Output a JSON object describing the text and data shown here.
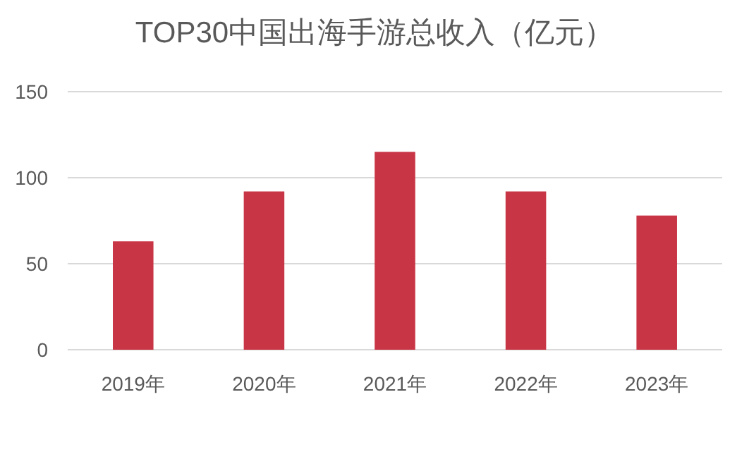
{
  "chart_data": {
    "type": "bar",
    "title": "TOP30中国出海手游总收入（亿元）",
    "categories": [
      "2019年",
      "2020年",
      "2021年",
      "2022年",
      "2023年"
    ],
    "values": [
      63,
      92,
      115,
      92,
      78
    ],
    "color": "#c83545",
    "ylim": [
      0,
      150
    ],
    "yticks": [
      0,
      50,
      100,
      150
    ],
    "grid": "y"
  }
}
